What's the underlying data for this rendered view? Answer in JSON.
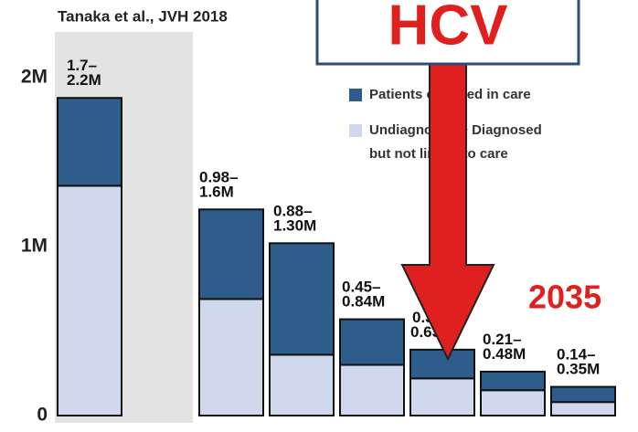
{
  "chart_data": {
    "type": "stacked_bar",
    "source": "Tanaka et al., JVH 2018",
    "boxed_label": "HCV",
    "annotation": "2035",
    "categories": [
      null,
      null,
      null,
      null,
      null,
      null,
      null
    ],
    "series": [
      {
        "name": "Undiagnosed + Diagnosed but not linked to care",
        "color": "#cfd8ec",
        "values": [
          1360000,
          690000,
          360000,
          300000,
          220000,
          150000,
          80000
        ]
      },
      {
        "name": "Patients engaged in care",
        "color": "#2e5d8c",
        "values": [
          520000,
          530000,
          660000,
          270000,
          170000,
          110000,
          90000
        ]
      }
    ],
    "range_labels": [
      "1.7–2.2M",
      "0.98–1.6M",
      "0.88–1.30M",
      "0.45–0.84M",
      "0.30–0.63M",
      "0.21–0.48M",
      "0.14–0.35M"
    ],
    "ylim": [
      0,
      2000000
    ],
    "yticks": [
      0,
      {
        "value": 1000000,
        "label": "1M"
      },
      {
        "value": 2000000,
        "label": "2M"
      }
    ]
  }
}
